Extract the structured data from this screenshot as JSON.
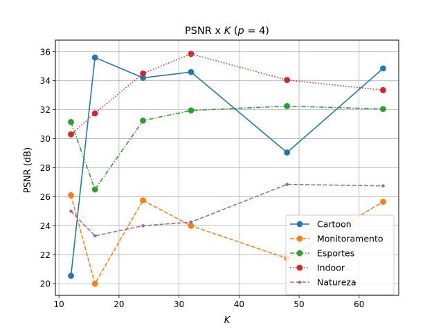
{
  "chart_data": {
    "type": "line",
    "title_main": "PSNR x ",
    "title_k": "K",
    "title_paren": " (",
    "title_p": "p",
    "title_eq": " = 4)",
    "xlabel": "K",
    "ylabel": "PSNR (dB)",
    "xlim": [
      9.4,
      66.6
    ],
    "ylim": [
      19.2,
      36.8
    ],
    "xticks": [
      10,
      20,
      30,
      40,
      50,
      60
    ],
    "yticks": [
      20,
      22,
      24,
      26,
      28,
      30,
      32,
      34,
      36
    ],
    "grid": true,
    "legend_position": "lower-right",
    "x": [
      12,
      16,
      24,
      32,
      48,
      64
    ],
    "series": [
      {
        "name": "Cartoon",
        "color": "#1f77b4",
        "dash": "solid",
        "marker": "circle",
        "values": [
          20.55,
          35.6,
          34.2,
          34.6,
          29.05,
          34.85
        ]
      },
      {
        "name": "Monitoramento",
        "color": "#ff7f0e",
        "dash": "dashed",
        "marker": "circle",
        "values": [
          26.1,
          20.0,
          25.75,
          24.0,
          21.75,
          25.65
        ]
      },
      {
        "name": "Esportes",
        "color": "#2ca02c",
        "dash": "dashdot",
        "marker": "circle",
        "values": [
          31.15,
          26.5,
          31.25,
          31.95,
          32.25,
          32.05
        ]
      },
      {
        "name": "Indoor",
        "color": "#d62728",
        "dash": "dotted",
        "marker": "circle",
        "values": [
          30.3,
          31.75,
          34.5,
          35.85,
          34.05,
          33.35
        ]
      },
      {
        "name": "Natureza",
        "color": "#9467bd",
        "dash": "dashed",
        "marker": "point",
        "values": [
          25.0,
          23.3,
          24.0,
          24.25,
          26.85,
          26.75
        ]
      }
    ]
  }
}
